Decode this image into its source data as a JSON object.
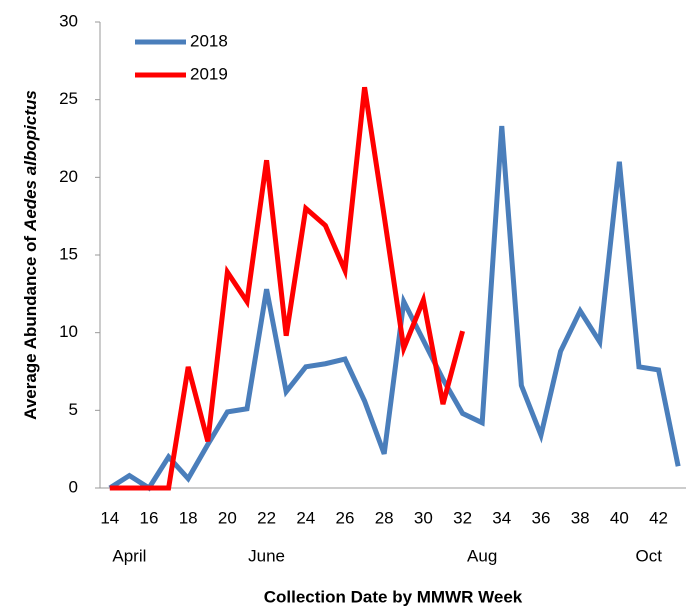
{
  "chart_data": {
    "type": "line",
    "ylabel_parts": [
      "Average Abundance of",
      "Aedes albopictus"
    ],
    "xlabel": "Collection Date by MMWR Week",
    "x": [
      14,
      15,
      16,
      17,
      18,
      19,
      20,
      21,
      22,
      23,
      24,
      25,
      26,
      27,
      28,
      29,
      30,
      31,
      32,
      33,
      34,
      35,
      36,
      37,
      38,
      39,
      40,
      41,
      42,
      43
    ],
    "series": [
      {
        "name": "2018",
        "color": "#4a7ebb",
        "values": [
          0,
          0.8,
          0,
          2,
          0.6,
          2.8,
          4.9,
          5.1,
          12.8,
          6.2,
          7.8,
          8.0,
          8.3,
          5.6,
          2.2,
          12.0,
          9.5,
          7.0,
          4.8,
          4.2,
          23.3,
          6.6,
          3.4,
          8.8,
          11.4,
          9.4,
          21.0,
          7.8,
          7.6,
          1.4
        ]
      },
      {
        "name": "2019",
        "color": "#ff0000",
        "values": [
          0,
          0,
          0,
          0,
          7.8,
          3.0,
          13.9,
          12.0,
          21.1,
          9.8,
          18.0,
          16.9,
          14.0,
          25.8,
          17.5,
          9.0,
          12.1,
          5.4,
          10.1,
          null,
          null,
          null,
          null,
          null,
          null,
          null,
          null,
          null,
          null,
          null
        ]
      }
    ],
    "xlim": [
      13.5,
      43.4
    ],
    "xticks": [
      14,
      16,
      18,
      20,
      22,
      24,
      26,
      28,
      30,
      32,
      34,
      36,
      38,
      40,
      42
    ],
    "ylim": [
      0,
      30
    ],
    "yticks": [
      0,
      5,
      10,
      15,
      20,
      25,
      30
    ],
    "month_labels": [
      {
        "value": 15,
        "label": "April"
      },
      {
        "value": 22,
        "label": "June"
      },
      {
        "value": 33,
        "label": "Aug"
      },
      {
        "value": 41.5,
        "label": "Oct"
      }
    ],
    "grid": false,
    "legend": "top-left"
  }
}
